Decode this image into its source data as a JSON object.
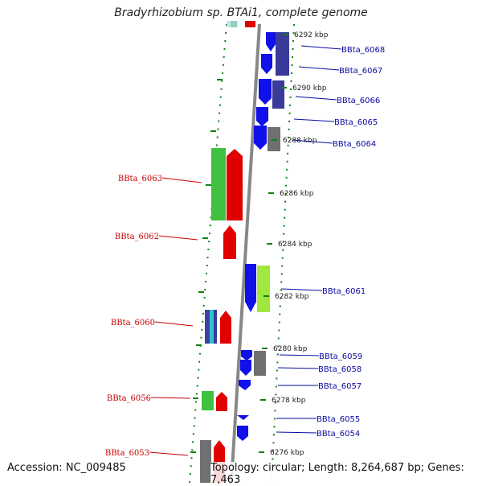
{
  "title": "Bradyrhizobium sp. BTAi1, complete genome",
  "accession": "Accession: NC_009485",
  "topology": "Topology: circular; Length: 8,264,687 bp; Genes: 7,463",
  "colors": {
    "forward_label": "#0a0aa0",
    "reverse_label": "#c80000",
    "tick": "#108010",
    "backbone": "#888888"
  },
  "scale_labels": [
    "6292 kbp",
    "6290 kbp",
    "6288 kbp",
    "6286 kbp",
    "6284 kbp",
    "6282 kbp",
    "6280 kbp",
    "6278 kbp",
    "6276 kbp"
  ],
  "forward_genes": [
    "BBta_6068",
    "BBta_6067",
    "BBta_6066",
    "BBta_6065",
    "BBta_6064",
    "BBta_6061",
    "BBta_6059",
    "BBta_6058",
    "BBta_6057",
    "BBta_6055",
    "BBta_6054"
  ],
  "reverse_genes": [
    "BBta_6063",
    "BBta_6062",
    "BBta_6060",
    "BBta_6056",
    "BBta_6053"
  ]
}
